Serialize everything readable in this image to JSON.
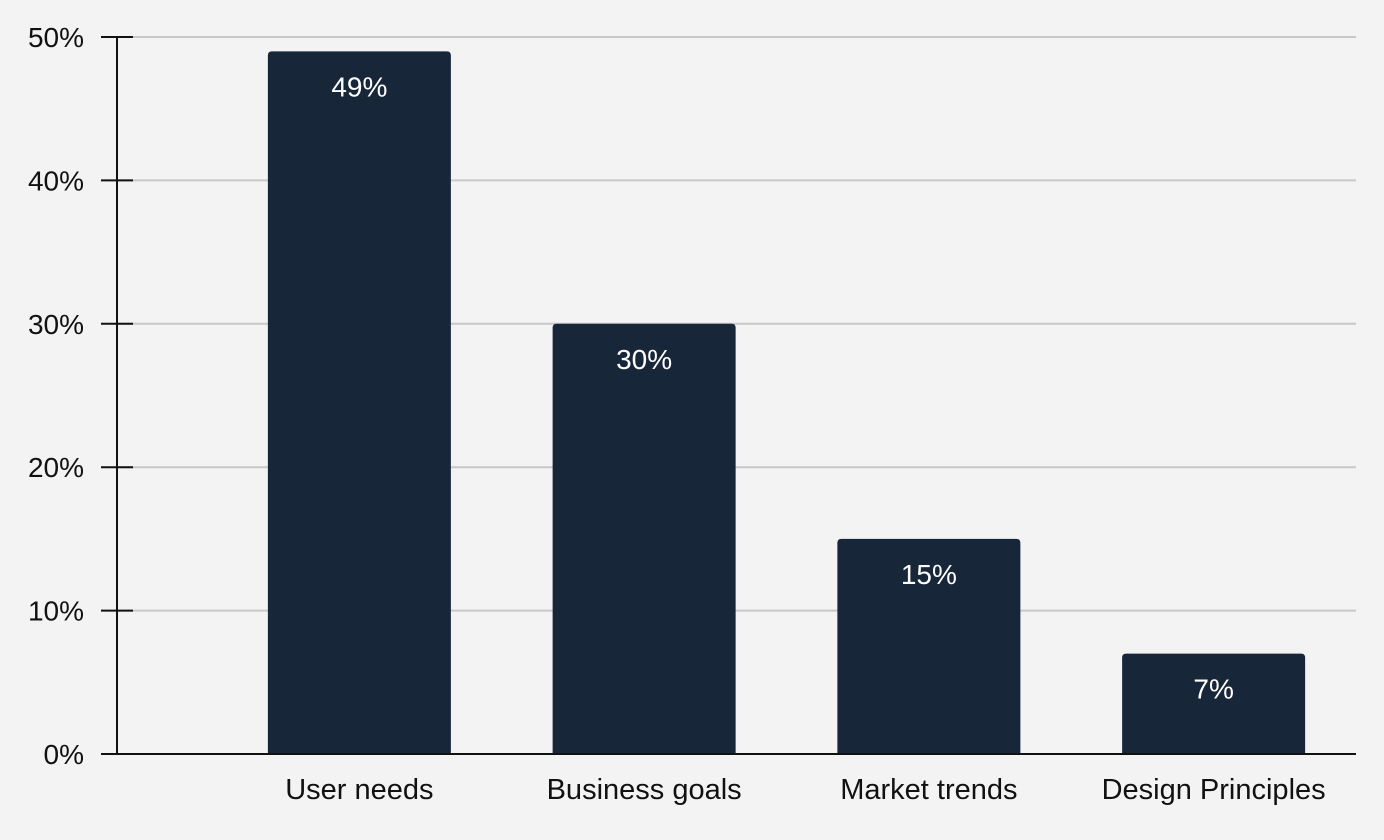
{
  "chart_data": {
    "type": "bar",
    "categories": [
      "User needs",
      "Business goals",
      "Market trends",
      "Design Principles"
    ],
    "values": [
      49,
      30,
      15,
      7
    ],
    "data_labels": [
      "49%",
      "30%",
      "15%",
      "7%"
    ],
    "title": "",
    "xlabel": "",
    "ylabel": "",
    "ylim": [
      0,
      50
    ],
    "yticks": [
      0,
      10,
      20,
      30,
      40,
      50
    ],
    "ytick_labels": [
      "0%",
      "10%",
      "20%",
      "30%",
      "40%",
      "50%"
    ],
    "grid": true,
    "legend": "none",
    "colors": {
      "bar": "#182639",
      "grid": "#c8c8c8",
      "axis": "#111111",
      "background": "#f3f3f3",
      "data_label": "#ffffff"
    }
  }
}
